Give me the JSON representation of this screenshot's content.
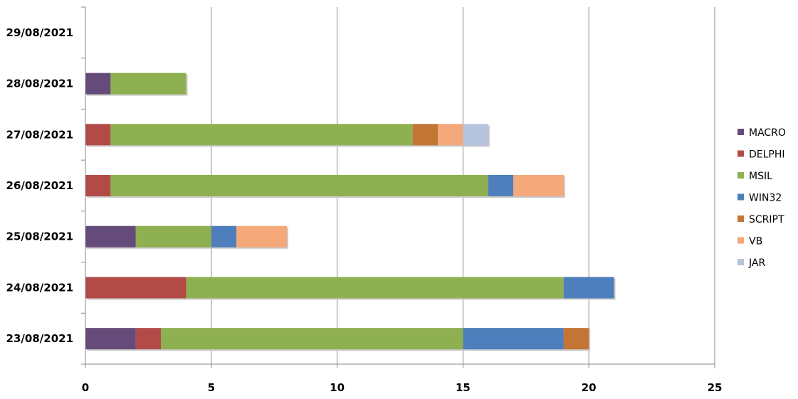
{
  "chart_data": {
    "type": "bar",
    "orientation": "horizontal",
    "stacked": true,
    "title": "",
    "xlabel": "",
    "ylabel": "",
    "categories": [
      "23/08/2021",
      "24/08/2021",
      "25/08/2021",
      "26/08/2021",
      "27/08/2021",
      "28/08/2021",
      "29/08/2021"
    ],
    "xlim": [
      0,
      25
    ],
    "xticks": [
      "0",
      "5",
      "10",
      "15",
      "20",
      "25"
    ],
    "grid": "vertical",
    "legend_position": "right",
    "series": [
      {
        "name": "MACRO",
        "color": "#654B7A",
        "values": [
          2,
          0,
          2,
          0,
          0,
          1,
          0
        ]
      },
      {
        "name": "DELPHI",
        "color": "#B24B48",
        "values": [
          1,
          4,
          0,
          1,
          1,
          0,
          0
        ]
      },
      {
        "name": "MSIL",
        "color": "#8FB050",
        "values": [
          12,
          15,
          3,
          15,
          12,
          3,
          0
        ]
      },
      {
        "name": "WIN32",
        "color": "#4E7FBC",
        "values": [
          4,
          2,
          1,
          1,
          0,
          0,
          0
        ]
      },
      {
        "name": "SCRIPT",
        "color": "#C37535",
        "values": [
          1,
          0,
          0,
          0,
          1,
          0,
          0
        ]
      },
      {
        "name": "VB",
        "color": "#F5A87A",
        "values": [
          0,
          0,
          2,
          2,
          1,
          0,
          0
        ]
      },
      {
        "name": "JAR",
        "color": "#B5C3DD",
        "values": [
          0,
          0,
          0,
          0,
          1,
          0,
          0
        ]
      }
    ]
  }
}
